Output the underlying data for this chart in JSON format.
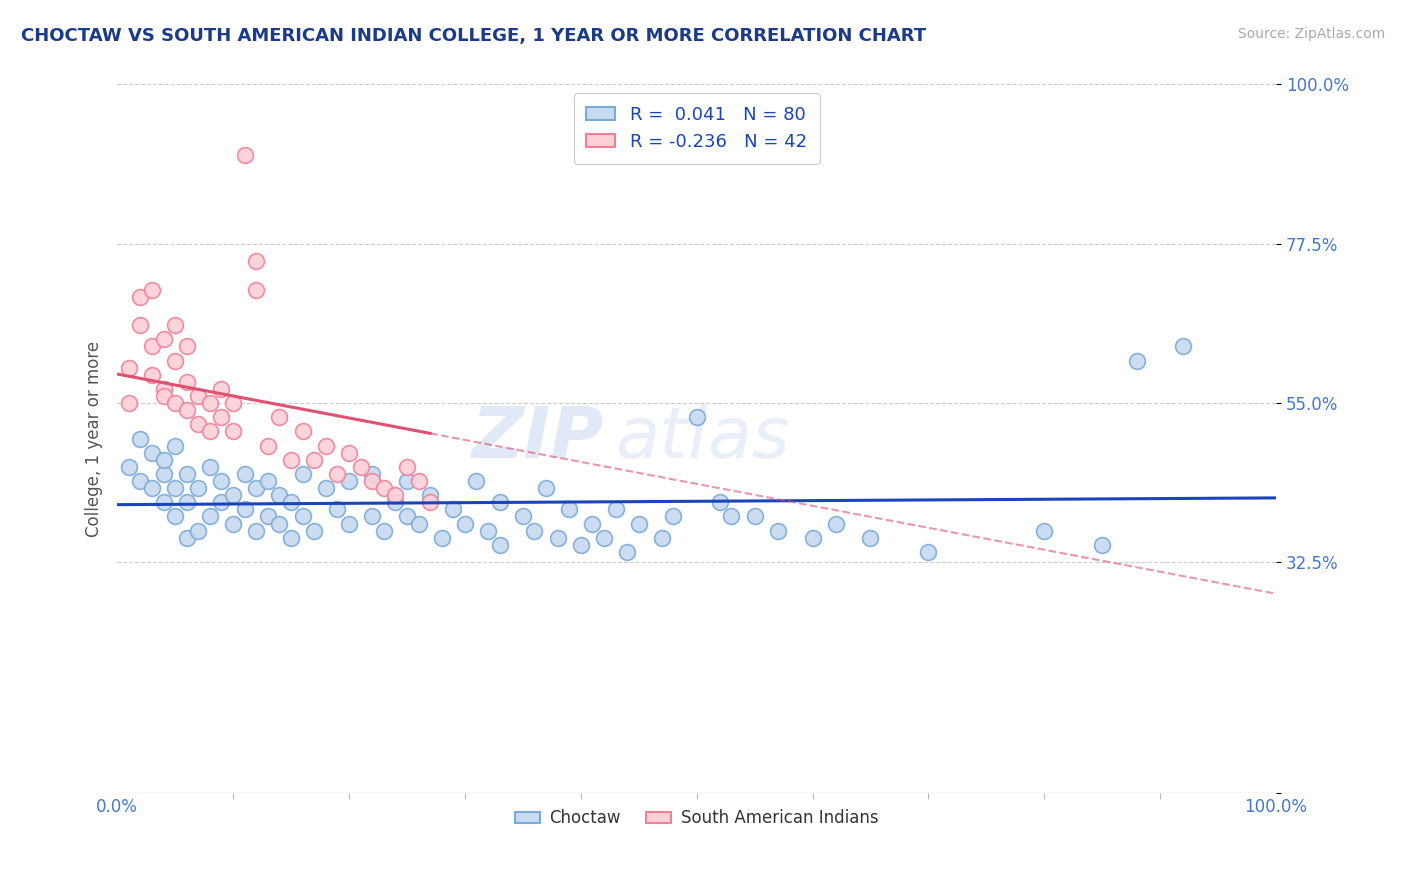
{
  "title": "CHOCTAW VS SOUTH AMERICAN INDIAN COLLEGE, 1 YEAR OR MORE CORRELATION CHART",
  "source": "Source: ZipAtlas.com",
  "ylabel": "College, 1 year or more",
  "xlim": [
    0.0,
    1.0
  ],
  "ylim": [
    0.0,
    1.0
  ],
  "ytick_positions": [
    0.0,
    0.325,
    0.55,
    0.775,
    1.0
  ],
  "yticklabels_right": [
    "",
    "32.5%",
    "55.0%",
    "77.5%",
    "100.0%"
  ],
  "r_choctaw": 0.041,
  "n_choctaw": 80,
  "r_south_american": -0.236,
  "n_south_american": 42,
  "legend_label1": "Choctaw",
  "legend_label2": "South American Indians",
  "color_choctaw_fill": "#c8daf0",
  "color_choctaw_edge": "#7aaad8",
  "color_south_american_fill": "#fdd0d8",
  "color_south_american_edge": "#f08098",
  "line_color_choctaw": "#1a44bb",
  "line_color_south_american": "#e05070",
  "watermark_zip": "ZIP",
  "watermark_atlas": "atlas",
  "background_color": "#ffffff",
  "grid_color": "#c8c8c8",
  "title_color": "#1a3a8a",
  "tick_color": "#4477cc",
  "choctaw_x": [
    0.01,
    0.02,
    0.02,
    0.03,
    0.03,
    0.04,
    0.04,
    0.04,
    0.05,
    0.05,
    0.05,
    0.06,
    0.06,
    0.06,
    0.07,
    0.07,
    0.08,
    0.08,
    0.09,
    0.09,
    0.1,
    0.1,
    0.11,
    0.11,
    0.12,
    0.12,
    0.13,
    0.13,
    0.14,
    0.14,
    0.15,
    0.15,
    0.16,
    0.16,
    0.17,
    0.18,
    0.19,
    0.2,
    0.2,
    0.22,
    0.22,
    0.23,
    0.24,
    0.25,
    0.25,
    0.26,
    0.27,
    0.28,
    0.29,
    0.3,
    0.31,
    0.32,
    0.33,
    0.33,
    0.35,
    0.36,
    0.37,
    0.38,
    0.39,
    0.4,
    0.41,
    0.42,
    0.43,
    0.44,
    0.45,
    0.47,
    0.48,
    0.5,
    0.52,
    0.53,
    0.55,
    0.57,
    0.6,
    0.62,
    0.65,
    0.7,
    0.8,
    0.85,
    0.88,
    0.92
  ],
  "choctaw_y": [
    0.46,
    0.44,
    0.5,
    0.43,
    0.48,
    0.41,
    0.45,
    0.47,
    0.39,
    0.43,
    0.49,
    0.36,
    0.41,
    0.45,
    0.37,
    0.43,
    0.39,
    0.46,
    0.41,
    0.44,
    0.38,
    0.42,
    0.4,
    0.45,
    0.37,
    0.43,
    0.39,
    0.44,
    0.38,
    0.42,
    0.36,
    0.41,
    0.39,
    0.45,
    0.37,
    0.43,
    0.4,
    0.38,
    0.44,
    0.39,
    0.45,
    0.37,
    0.41,
    0.39,
    0.44,
    0.38,
    0.42,
    0.36,
    0.4,
    0.38,
    0.44,
    0.37,
    0.41,
    0.35,
    0.39,
    0.37,
    0.43,
    0.36,
    0.4,
    0.35,
    0.38,
    0.36,
    0.4,
    0.34,
    0.38,
    0.36,
    0.39,
    0.53,
    0.41,
    0.39,
    0.39,
    0.37,
    0.36,
    0.38,
    0.36,
    0.34,
    0.37,
    0.35,
    0.61,
    0.63
  ],
  "south_american_x": [
    0.01,
    0.01,
    0.02,
    0.02,
    0.03,
    0.03,
    0.03,
    0.04,
    0.04,
    0.04,
    0.05,
    0.05,
    0.05,
    0.06,
    0.06,
    0.06,
    0.07,
    0.07,
    0.08,
    0.08,
    0.09,
    0.09,
    0.1,
    0.1,
    0.11,
    0.12,
    0.12,
    0.13,
    0.14,
    0.15,
    0.16,
    0.17,
    0.18,
    0.19,
    0.2,
    0.21,
    0.22,
    0.23,
    0.24,
    0.25,
    0.26,
    0.27
  ],
  "south_american_y": [
    0.6,
    0.55,
    0.66,
    0.7,
    0.59,
    0.63,
    0.71,
    0.57,
    0.64,
    0.56,
    0.55,
    0.61,
    0.66,
    0.54,
    0.58,
    0.63,
    0.52,
    0.56,
    0.51,
    0.55,
    0.53,
    0.57,
    0.51,
    0.55,
    0.9,
    0.71,
    0.75,
    0.49,
    0.53,
    0.47,
    0.51,
    0.47,
    0.49,
    0.45,
    0.48,
    0.46,
    0.44,
    0.43,
    0.42,
    0.46,
    0.44,
    0.41
  ]
}
